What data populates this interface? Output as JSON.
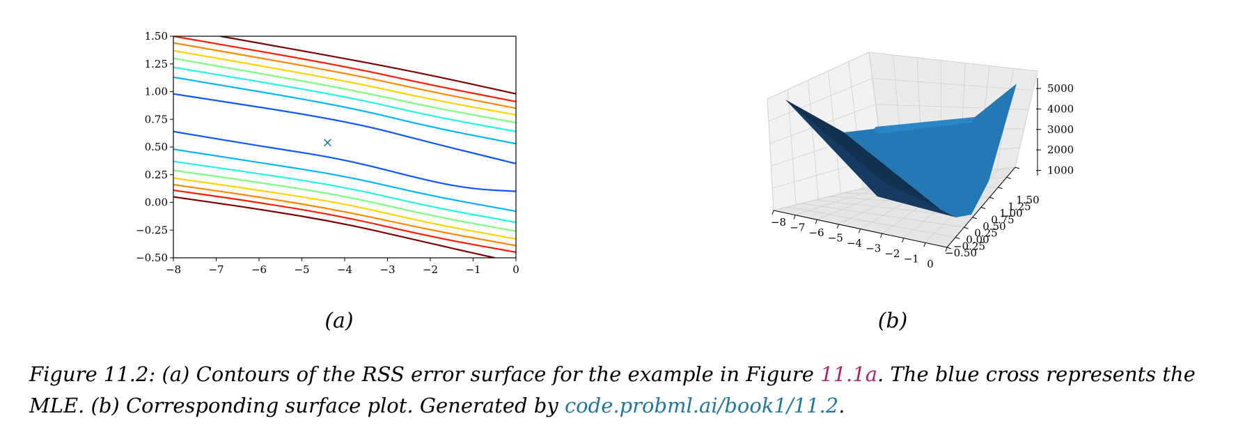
{
  "chart_data": [
    {
      "type": "contour",
      "panel_label": "(a)",
      "xlim": [
        -8,
        0
      ],
      "ylim": [
        -0.5,
        1.5
      ],
      "x_ticks": [
        "−8",
        "−7",
        "−6",
        "−5",
        "−4",
        "−3",
        "−2",
        "−1",
        "0"
      ],
      "y_ticks": [
        "−0.50",
        "−0.25",
        "0.00",
        "0.25",
        "0.50",
        "0.75",
        "1.00",
        "1.25",
        "1.50"
      ],
      "grid": false,
      "mle_marker": {
        "x": -4.4,
        "y": 0.54,
        "symbol": "x",
        "color": "#1f77b4"
      },
      "contour_lines": [
        {
          "color": "#7f0000",
          "points": [
            [
              -6.9,
              1.5
            ],
            [
              -4,
              1.3
            ],
            [
              -2,
              1.15
            ],
            [
              0,
              0.98
            ]
          ]
        },
        {
          "color": "#ff1c00",
          "points": [
            [
              -8,
              1.5
            ],
            [
              -4,
              1.23
            ],
            [
              -2,
              1.06
            ],
            [
              0,
              0.91
            ]
          ]
        },
        {
          "color": "#ff8800",
          "points": [
            [
              -8,
              1.44
            ],
            [
              -4,
              1.17
            ],
            [
              -2,
              1.0
            ],
            [
              0,
              0.85
            ]
          ]
        },
        {
          "color": "#ffd300",
          "points": [
            [
              -8,
              1.37
            ],
            [
              -4,
              1.1
            ],
            [
              -2,
              0.93
            ],
            [
              0,
              0.79
            ]
          ]
        },
        {
          "color": "#7aff7e",
          "points": [
            [
              -8,
              1.3
            ],
            [
              -4,
              1.03
            ],
            [
              -2,
              0.86
            ],
            [
              0,
              0.72
            ]
          ]
        },
        {
          "color": "#27f2e0",
          "points": [
            [
              -8,
              1.22
            ],
            [
              -4,
              0.96
            ],
            [
              -2,
              0.78
            ],
            [
              0,
              0.64
            ]
          ]
        },
        {
          "color": "#00b4ff",
          "points": [
            [
              -8,
              1.13
            ],
            [
              -4,
              0.87
            ],
            [
              -2,
              0.68
            ],
            [
              0,
              0.53
            ]
          ]
        },
        {
          "color": "#0d57ff",
          "points": [
            [
              -8,
              0.98
            ],
            [
              -4,
              0.74
            ],
            [
              -2,
              0.54
            ],
            [
              0,
              0.35
            ]
          ]
        },
        {
          "color": "#0d57ff",
          "points": [
            [
              -8,
              0.64
            ],
            [
              -6,
              0.51
            ],
            [
              -4,
              0.39
            ],
            [
              -2,
              0.19
            ],
            [
              -1,
              0.12
            ],
            [
              0,
              0.1
            ]
          ]
        },
        {
          "color": "#00b4ff",
          "points": [
            [
              -8,
              0.48
            ],
            [
              -6,
              0.36
            ],
            [
              -4,
              0.24
            ],
            [
              -2,
              0.06
            ],
            [
              0,
              -0.08
            ]
          ]
        },
        {
          "color": "#27f2e0",
          "points": [
            [
              -8,
              0.37
            ],
            [
              -6,
              0.26
            ],
            [
              -4,
              0.14
            ],
            [
              -2,
              -0.04
            ],
            [
              0,
              -0.18
            ]
          ]
        },
        {
          "color": "#7aff7e",
          "points": [
            [
              -8,
              0.29
            ],
            [
              -6,
              0.18
            ],
            [
              -4,
              0.06
            ],
            [
              -2,
              -0.12
            ],
            [
              0,
              -0.26
            ]
          ]
        },
        {
          "color": "#ffd300",
          "points": [
            [
              -8,
              0.22
            ],
            [
              -6,
              0.11
            ],
            [
              -4,
              -0.01
            ],
            [
              -2,
              -0.19
            ],
            [
              0,
              -0.33
            ]
          ]
        },
        {
          "color": "#ff8800",
          "points": [
            [
              -8,
              0.16
            ],
            [
              -6,
              0.05
            ],
            [
              -4,
              -0.08
            ],
            [
              -2,
              -0.25
            ],
            [
              0,
              -0.39
            ]
          ]
        },
        {
          "color": "#ff1c00",
          "points": [
            [
              -8,
              0.11
            ],
            [
              -6,
              0.0
            ],
            [
              -4,
              -0.13
            ],
            [
              -2,
              -0.31
            ],
            [
              0,
              -0.45
            ]
          ]
        },
        {
          "color": "#7f0000",
          "points": [
            [
              -8,
              0.05
            ],
            [
              -6,
              -0.06
            ],
            [
              -4,
              -0.19
            ],
            [
              -2,
              -0.37
            ],
            [
              -0.5,
              -0.5
            ]
          ]
        }
      ]
    },
    {
      "type": "surface",
      "panel_label": "(b)",
      "x_ticks": [
        "−8",
        "−7",
        "−6",
        "−5",
        "−4",
        "−3",
        "−2",
        "−1",
        "0"
      ],
      "y_ticks": [
        "−0.50",
        "−0.25",
        "0.00",
        "0.25",
        "0.50",
        "0.75",
        "1.00",
        "1.25",
        "1.50"
      ],
      "z_ticks": [
        "1000",
        "2000",
        "3000",
        "4000",
        "5000"
      ],
      "xlim": [
        -8,
        0
      ],
      "ylim": [
        -0.5,
        1.5
      ],
      "zlim": [
        0,
        5000
      ],
      "surface_color": "#1f77b4",
      "grid": true
    }
  ],
  "caption": {
    "prefix": "Figure 11.2: (a) Contours of the RSS error surface for the example in Figure ",
    "ref": "11.1a",
    "middle": ". The blue cross represents the MLE. (b) Corresponding surface plot. Generated by ",
    "link": "code.probml.ai/book1/11.2",
    "suffix": "."
  }
}
